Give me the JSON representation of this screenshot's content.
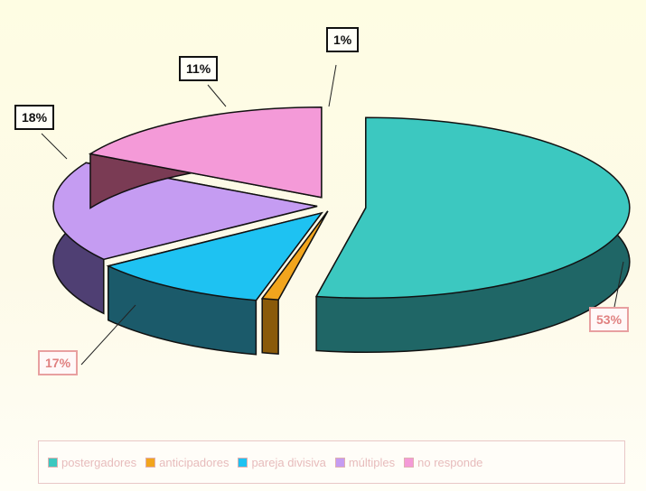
{
  "chart_data": {
    "type": "pie",
    "style": "3d-exploded",
    "slices": [
      {
        "label": "postergadores",
        "value": 53,
        "color": "#3cc8c0",
        "side_color": "#1f6666",
        "display": "53%"
      },
      {
        "label": "anticipadores",
        "value": 1,
        "color": "#f2a51d",
        "side_color": "#8a5a0a",
        "display": "1%"
      },
      {
        "label": "pareja divisiva",
        "value": 11,
        "color": "#1ec2f2",
        "side_color": "#1b5a6a",
        "display": "11%"
      },
      {
        "label": "múltiples",
        "value": 18,
        "color": "#c59cf2",
        "side_color": "#4f3f73",
        "display": "18%"
      },
      {
        "label": "no responde",
        "value": 17,
        "color": "#f49ad8",
        "side_color": "#7a3b54",
        "display": "17%"
      }
    ],
    "legend": {
      "placement": "bottom",
      "entries": [
        "postergadores",
        "anticipadores",
        "pareja divisiva",
        "múltiples",
        "no responde"
      ]
    }
  },
  "colors": {
    "background": "#fefde3",
    "label_border": "#111111",
    "legend_text": "#e7bcbc"
  }
}
